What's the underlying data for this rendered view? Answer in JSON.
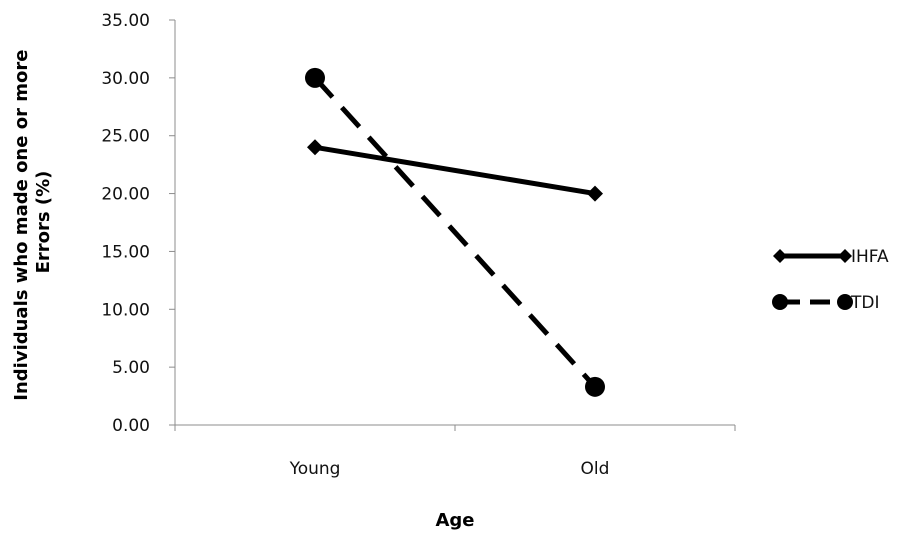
{
  "chart_data": {
    "type": "line",
    "title": "",
    "xlabel": "Age",
    "ylabel": "Individuals who made one or more Errors (%)",
    "ylabel_lines": [
      "Individuals who made one or more",
      "Errors (%)"
    ],
    "categories": [
      "Young",
      "Old"
    ],
    "ylim": [
      0,
      35
    ],
    "ytick_step": 5,
    "ytick_labels": [
      "0.00",
      "5.00",
      "10.00",
      "15.00",
      "20.00",
      "25.00",
      "30.00",
      "35.00"
    ],
    "grid": false,
    "legend_position": "right",
    "series": [
      {
        "name": "IHFA",
        "values": [
          24.0,
          20.0
        ],
        "marker": "diamond",
        "line_style": "solid",
        "color": "#000000"
      },
      {
        "name": "TDI",
        "values": [
          30.0,
          3.3
        ],
        "marker": "circle",
        "line_style": "dashed",
        "color": "#000000"
      }
    ]
  }
}
